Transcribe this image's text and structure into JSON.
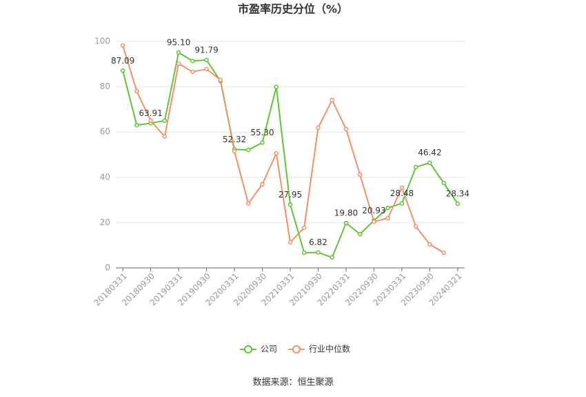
{
  "chart_data": {
    "type": "line",
    "title": "市盈率历史分位（%）",
    "categories": [
      "20180331",
      null,
      "20180930",
      null,
      "20190331",
      null,
      "20190930",
      null,
      "20200331",
      null,
      "20200930",
      null,
      "20210331",
      null,
      "20210930",
      null,
      "20220331",
      null,
      "20220930",
      null,
      "20230331",
      null,
      "20230930",
      null,
      "20240321"
    ],
    "series": [
      {
        "name": "公司",
        "color": "#62c33a",
        "values": [
          87.09,
          63,
          63.91,
          65,
          95.1,
          91.4,
          91.79,
          82.5,
          52.32,
          52.1,
          55.3,
          79.9,
          27.95,
          6.7,
          6.82,
          4.6,
          19.8,
          14.9,
          20.93,
          26.5,
          28.48,
          44.5,
          46.42,
          37.5,
          28.34
        ],
        "value_labels": [
          "87.09",
          null,
          "63.91",
          null,
          "95.10",
          null,
          "91.79",
          null,
          "52.32",
          null,
          "55.30",
          null,
          "27.95",
          null,
          "6.82",
          null,
          "19.80",
          null,
          "20.93",
          null,
          "28.48",
          null,
          "46.42",
          null,
          "28.34"
        ]
      },
      {
        "name": "行业中位数",
        "color": "#f0916a",
        "values": [
          98.2,
          78,
          65,
          58,
          90.2,
          86.6,
          87.8,
          83,
          51.5,
          28.4,
          36.9,
          50.6,
          11.3,
          17.7,
          61.9,
          74.1,
          61.3,
          41.2,
          20.4,
          22,
          35.4,
          18.3,
          10.4,
          6.7,
          null
        ]
      }
    ],
    "ylim": [
      0,
      100
    ],
    "yticks": [
      0,
      20,
      40,
      60,
      80,
      100
    ],
    "grid": true,
    "legend": "bottom",
    "source": "数据来源：恒生聚源"
  }
}
